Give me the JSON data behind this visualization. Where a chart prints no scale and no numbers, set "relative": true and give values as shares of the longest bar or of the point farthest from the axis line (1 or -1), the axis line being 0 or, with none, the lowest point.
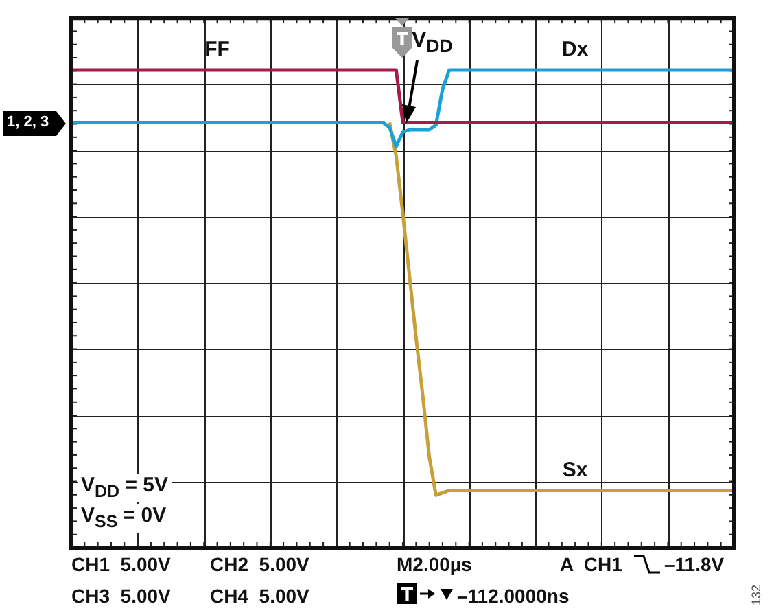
{
  "chart_data": {
    "type": "line",
    "relative": true,
    "grid": true,
    "legend": false,
    "marker": "none",
    "line_style": "solid",
    "categories": [
      null,
      null,
      null,
      null,
      null,
      null,
      null,
      null,
      null,
      null,
      null,
      null,
      null,
      null,
      null,
      null,
      null,
      null,
      null,
      null,
      null,
      null,
      null,
      null,
      null,
      null,
      null,
      null,
      null,
      null,
      null,
      null,
      null,
      null,
      null,
      null,
      null,
      null,
      null,
      null,
      null,
      null,
      null,
      null,
      null,
      null,
      null,
      null,
      null,
      null,
      null,
      null,
      null,
      null,
      null,
      null,
      null,
      null,
      null,
      null,
      null,
      null,
      null,
      null,
      null,
      null,
      null,
      null,
      null,
      null,
      null,
      null,
      null,
      null,
      null,
      null,
      null,
      null,
      null,
      null,
      null,
      null,
      null,
      null,
      null,
      null,
      null,
      null,
      null,
      null,
      null,
      null,
      null,
      null,
      null,
      null,
      null,
      null,
      null,
      null,
      null
    ],
    "series": [
      {
        "name": "FF",
        "color": "#a51c4a",
        "values": [
          1,
          1,
          1,
          1,
          1,
          1,
          1,
          1,
          1,
          1,
          1,
          1,
          1,
          1,
          1,
          1,
          1,
          1,
          1,
          1,
          1,
          1,
          1,
          1,
          1,
          1,
          1,
          1,
          1,
          1,
          1,
          1,
          1,
          1,
          1,
          1,
          1,
          1,
          1,
          1,
          1,
          1,
          1,
          1,
          1,
          1,
          1,
          1,
          1,
          1,
          0.89,
          0.89,
          0.89,
          0.89,
          0.89,
          0.89,
          0.89,
          0.89,
          0.89,
          0.89,
          0.89,
          0.89,
          0.89,
          0.89,
          0.89,
          0.89,
          0.89,
          0.89,
          0.89,
          0.89,
          0.89,
          0.89,
          0.89,
          0.89,
          0.89,
          0.89,
          0.89,
          0.89,
          0.89,
          0.89,
          0.89,
          0.89,
          0.89,
          0.89,
          0.89,
          0.89,
          0.89,
          0.89,
          0.89,
          0.89,
          0.89,
          0.89,
          0.89,
          0.89,
          0.89,
          0.89,
          0.89,
          0.89,
          0.89,
          0.89,
          0.89
        ]
      },
      {
        "name": "Dx",
        "color": "#1ba0d7",
        "values": [
          0.89,
          0.89,
          0.89,
          0.89,
          0.89,
          0.89,
          0.89,
          0.89,
          0.89,
          0.89,
          0.89,
          0.89,
          0.89,
          0.89,
          0.89,
          0.89,
          0.89,
          0.89,
          0.89,
          0.89,
          0.89,
          0.89,
          0.89,
          0.89,
          0.89,
          0.89,
          0.89,
          0.89,
          0.89,
          0.89,
          0.89,
          0.89,
          0.89,
          0.89,
          0.89,
          0.89,
          0.89,
          0.89,
          0.89,
          0.89,
          0.89,
          0.89,
          0.89,
          0.89,
          0.89,
          0.89,
          0.89,
          0.89,
          0.88,
          0.84,
          0.87,
          0.875,
          0.875,
          0.875,
          0.875,
          0.885,
          0.96,
          1,
          1,
          1,
          1,
          1,
          1,
          1,
          1,
          1,
          1,
          1,
          1,
          1,
          1,
          1,
          1,
          1,
          1,
          1,
          1,
          1,
          1,
          1,
          1,
          1,
          1,
          1,
          1,
          1,
          1,
          1,
          1,
          1,
          1,
          1,
          1,
          1,
          1,
          1,
          1,
          1,
          1,
          1,
          1
        ]
      },
      {
        "name": "Sx",
        "color": "#c8a03a",
        "values": [
          null,
          null,
          null,
          null,
          null,
          null,
          null,
          null,
          null,
          null,
          null,
          null,
          null,
          null,
          null,
          null,
          null,
          null,
          null,
          null,
          null,
          null,
          null,
          null,
          null,
          null,
          null,
          null,
          null,
          null,
          null,
          null,
          null,
          null,
          null,
          null,
          null,
          null,
          null,
          null,
          null,
          null,
          null,
          null,
          null,
          null,
          null,
          null,
          0.89,
          0.82,
          0.7,
          0.57,
          0.44,
          0.32,
          0.19,
          0.11,
          0.115,
          0.12,
          0.12,
          0.12,
          0.12,
          0.12,
          0.12,
          0.12,
          0.12,
          0.12,
          0.12,
          0.12,
          0.12,
          0.12,
          0.12,
          0.12,
          0.12,
          0.12,
          0.12,
          0.12,
          0.12,
          0.12,
          0.12,
          0.12,
          0.12,
          0.12,
          0.12,
          0.12,
          0.12,
          0.12,
          0.12,
          0.12,
          0.12,
          0.12,
          0.12,
          0.12,
          0.12,
          0.12,
          0.12,
          0.12,
          0.12,
          0.12,
          0.12,
          0.12,
          0.12
        ]
      }
    ],
    "annotations": [
      "V$_{DD}$",
      "1, 2, 3",
      "V$_{DD}$ = 5V",
      "V$_{SS}$ = 0V",
      "CH1  5.00V",
      "CH2  5.00V",
      "M2.00µs",
      "A  CH1",
      "–11.8V",
      "CH3  5.00V",
      "CH4  5.00V",
      "–112.0000ns",
      "132"
    ]
  }
}
